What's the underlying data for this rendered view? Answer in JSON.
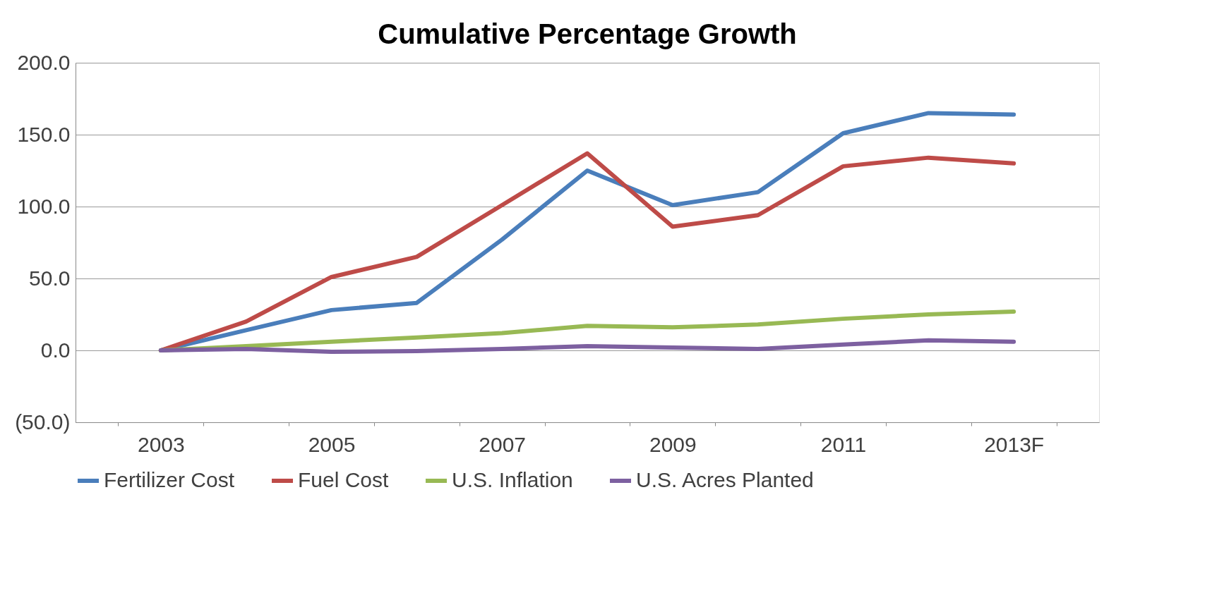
{
  "chart_data": {
    "type": "line",
    "title": "Cumulative Percentage Growth",
    "categories": [
      "2003",
      null,
      "2005",
      null,
      "2007",
      null,
      "2009",
      null,
      "2011",
      null,
      "2013F"
    ],
    "series": [
      {
        "name": "Fertilizer Cost",
        "color": "#4a7ebb",
        "values": [
          0,
          14,
          28,
          33,
          77,
          125,
          101,
          110,
          151,
          165,
          164
        ]
      },
      {
        "name": "Fuel Cost",
        "color": "#be4b48",
        "values": [
          0,
          20,
          51,
          65,
          101,
          137,
          86,
          94,
          128,
          134,
          130
        ]
      },
      {
        "name": "U.S. Inflation",
        "color": "#98b954",
        "values": [
          0,
          3,
          6,
          9,
          12,
          17,
          16,
          18,
          22,
          25,
          27
        ]
      },
      {
        "name": "U.S. Acres Planted",
        "color": "#7d60a0",
        "values": [
          0,
          1,
          -1,
          -0.5,
          1,
          3,
          2,
          1,
          4,
          7,
          6
        ]
      }
    ],
    "ylim": [
      -50,
      200
    ],
    "yticks": [
      {
        "value": -50,
        "label": "(50.0)"
      },
      {
        "value": 0,
        "label": "0.0"
      },
      {
        "value": 50,
        "label": "50.0"
      },
      {
        "value": 100,
        "label": "100.0"
      },
      {
        "value": 150,
        "label": "150.0"
      },
      {
        "value": 200,
        "label": "200.0"
      }
    ],
    "grid": "y",
    "legend": "bottom",
    "line_style": "solid"
  }
}
